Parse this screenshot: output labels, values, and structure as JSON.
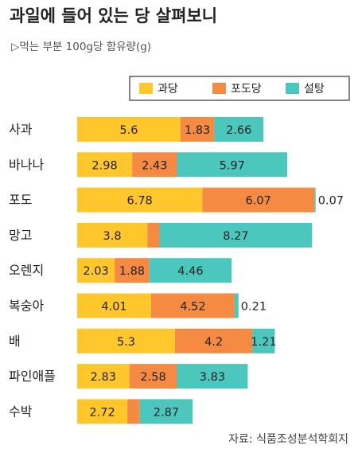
{
  "chart_data": {
    "type": "bar",
    "orientation": "horizontal",
    "stacked": true,
    "title": "과일에 들어 있는 당 살펴보니",
    "subtitle": "▷먹는 부분 100g당 함유량(g)",
    "source": "자료: 식품조성분석학회지",
    "legend_position": "top-right",
    "grid": false,
    "categories": [
      "사과",
      "바나나",
      "포도",
      "망고",
      "오렌지",
      "복숭아",
      "배",
      "파인애플",
      "수박"
    ],
    "series": [
      {
        "name": "과당",
        "color": "#FFC72C",
        "values": [
          5.6,
          2.98,
          6.78,
          3.8,
          2.03,
          4.01,
          5.3,
          2.83,
          2.72
        ]
      },
      {
        "name": "포도당",
        "color": "#F58A42",
        "values": [
          1.83,
          2.43,
          6.07,
          0.66,
          1.88,
          4.52,
          4.2,
          2.58,
          0.67
        ]
      },
      {
        "name": "설탕",
        "color": "#4CC7BD",
        "values": [
          2.66,
          5.97,
          0.07,
          8.27,
          4.46,
          0.21,
          1.21,
          3.83,
          2.87
        ]
      }
    ]
  }
}
